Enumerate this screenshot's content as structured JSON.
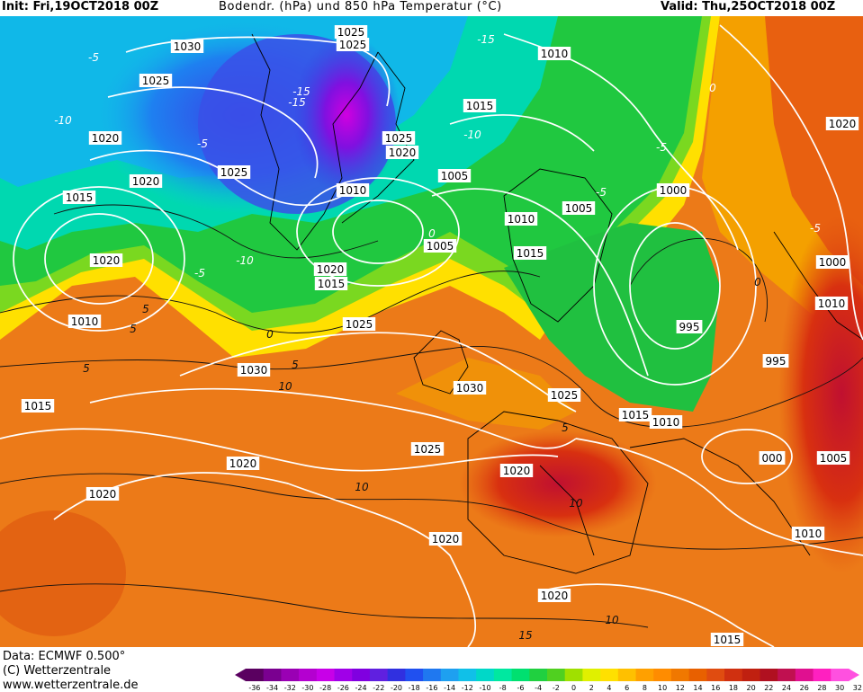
{
  "header": {
    "init": "Init: Fri,19OCT2018 00Z",
    "title": "Bodendr. (hPa) und 850 hPa Temperatur (°C)",
    "valid": "Valid: Thu,25OCT2018 00Z"
  },
  "footer": {
    "source": "Data: ECMWF  0.500°",
    "copyright": "(C) Wetterzentrale",
    "url": "www.wetterzentrale.de"
  },
  "colors": {
    "isobar": "#ffffff",
    "coast": "#000000",
    "temp_contour": "#111111"
  },
  "color_scale": {
    "ticks": [
      "-36",
      "-34",
      "-32",
      "-30",
      "-28",
      "-26",
      "-24",
      "-22",
      "-20",
      "-18",
      "-16",
      "-14",
      "-12",
      "-10",
      "-8",
      "-6",
      "-4",
      "-2",
      "0",
      "2",
      "4",
      "6",
      "8",
      "10",
      "12",
      "14",
      "16",
      "18",
      "20",
      "22",
      "24",
      "26",
      "28",
      "30",
      "32"
    ],
    "colors": [
      "#5a0060",
      "#7a0090",
      "#9a00b4",
      "#b400d0",
      "#c800e8",
      "#a000e8",
      "#8000e0",
      "#6020e0",
      "#3030e0",
      "#2050f0",
      "#1f78f0",
      "#1ea0f0",
      "#10c0e8",
      "#00d8c8",
      "#00e8a0",
      "#00e070",
      "#20d040",
      "#50d020",
      "#a0e000",
      "#e0f000",
      "#ffe000",
      "#ffc000",
      "#ffa000",
      "#ff8c00",
      "#f07800",
      "#e86000",
      "#e04c10",
      "#d03010",
      "#c02010",
      "#b01020",
      "#c01050",
      "#e01090",
      "#ff20c0",
      "#ff50e0"
    ]
  },
  "map_data": {
    "isobar_labels": [
      {
        "text": "1030"
      },
      {
        "text": "1025"
      },
      {
        "text": "1025"
      },
      {
        "text": "1025"
      },
      {
        "text": "1010"
      },
      {
        "text": "1015"
      },
      {
        "text": "1025"
      },
      {
        "text": "1020"
      },
      {
        "text": "1020"
      },
      {
        "text": "1020"
      },
      {
        "text": "1025"
      },
      {
        "text": "1020"
      },
      {
        "text": "1005"
      },
      {
        "text": "1015"
      },
      {
        "text": "1010"
      },
      {
        "text": "1000"
      },
      {
        "text": "1005"
      },
      {
        "text": "1010"
      },
      {
        "text": "1015"
      },
      {
        "text": "1020"
      },
      {
        "text": "1015"
      },
      {
        "text": "1005"
      },
      {
        "text": "1010"
      },
      {
        "text": "1025"
      },
      {
        "text": "995"
      },
      {
        "text": "1000"
      },
      {
        "text": "1010"
      },
      {
        "text": "995"
      },
      {
        "text": "1030"
      },
      {
        "text": "1030"
      },
      {
        "text": "1015"
      },
      {
        "text": "1025"
      },
      {
        "text": "1015"
      },
      {
        "text": "1010"
      },
      {
        "text": "1020"
      },
      {
        "text": "1020"
      },
      {
        "text": "1025"
      },
      {
        "text": "1020"
      },
      {
        "text": "1020"
      },
      {
        "text": "000"
      },
      {
        "text": "1005"
      },
      {
        "text": "1010"
      },
      {
        "text": "1020"
      },
      {
        "text": "1015"
      },
      {
        "text": "1020"
      }
    ],
    "temp_labels": [
      {
        "text": "-5"
      },
      {
        "text": "-10"
      },
      {
        "text": "-15"
      },
      {
        "text": "-15"
      },
      {
        "text": "-10"
      },
      {
        "text": "-5"
      },
      {
        "text": "0"
      },
      {
        "text": "5"
      },
      {
        "text": "10"
      },
      {
        "text": "10"
      },
      {
        "text": "15"
      },
      {
        "text": "-10"
      },
      {
        "text": "-5"
      },
      {
        "text": "0"
      },
      {
        "text": "5"
      },
      {
        "text": "10"
      },
      {
        "text": "5"
      },
      {
        "text": "0"
      },
      {
        "text": "-5"
      },
      {
        "text": "5"
      },
      {
        "text": "-5"
      },
      {
        "text": "0"
      },
      {
        "text": "10"
      },
      {
        "text": "5"
      },
      {
        "text": "-5"
      },
      {
        "text": "-15"
      }
    ]
  }
}
